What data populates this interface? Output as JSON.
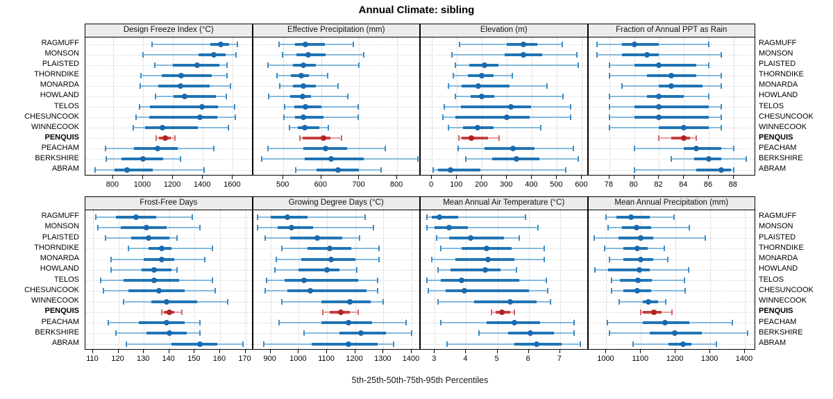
{
  "title": "Annual Climate: sibling",
  "xlabel": "5th-25th-50th-75th-95th Percentiles",
  "sites": [
    "RAGMUFF",
    "MONSON",
    "PLAISTED",
    "THORNDIKE",
    "MONARDA",
    "HOWLAND",
    "TELOS",
    "CHESUNCOOK",
    "WINNECOOK",
    "PENQUIS",
    "PEACHAM",
    "BERKSHIRE",
    "ABRAM"
  ],
  "highlight_site": "PENQUIS",
  "colors": {
    "blue_whisker": "#85b9dd",
    "blue_cap": "#3d8dc4",
    "blue_iqr": "#1f74b4",
    "blue_dot": "#1a6aad",
    "red_whisker": "#e49c9c",
    "red_cap": "#d16a6a",
    "red_iqr": "#c54040",
    "red_dot": "#b02423",
    "strip_bg": "#ececec",
    "grid": "#d9d9d9"
  },
  "chart_data": [
    {
      "type": "dotplot-percentiles",
      "panel_title": "Design Freeze Index (°C)",
      "xlim": [
        615,
        1735
      ],
      "ticks": [
        800,
        1000,
        1200,
        1400,
        1600
      ],
      "values": {
        "RAGMUFF": [
          1060,
          1450,
          1520,
          1575,
          1630
        ],
        "MONSON": [
          1000,
          1370,
          1475,
          1550,
          1620
        ],
        "PLAISTED": [
          1080,
          1200,
          1360,
          1510,
          1560
        ],
        "THORNDIKE": [
          985,
          1125,
          1255,
          1460,
          1560
        ],
        "MONARDA": [
          980,
          1100,
          1250,
          1445,
          1585
        ],
        "HOWLAND": [
          1085,
          1205,
          1280,
          1485,
          1555
        ],
        "TELOS": [
          975,
          1045,
          1395,
          1500,
          1610
        ],
        "CHESUNCOOK": [
          955,
          1040,
          1380,
          1495,
          1615
        ],
        "WINNECOOK": [
          935,
          1015,
          1130,
          1365,
          1570
        ],
        "PENQUIS": [
          1090,
          1105,
          1150,
          1185,
          1215
        ],
        "PEACHAM": [
          750,
          940,
          1095,
          1230,
          1475
        ],
        "BERKSHIRE": [
          755,
          855,
          1000,
          1135,
          1250
        ],
        "ABRAM": [
          680,
          810,
          895,
          1065,
          1410
        ]
      }
    },
    {
      "type": "dotplot-percentiles",
      "panel_title": "Effective Precipitation (mm)",
      "xlim": [
        420,
        862
      ],
      "ticks": [
        500,
        600,
        700,
        800
      ],
      "values": {
        "RAGMUFF": [
          488,
          530,
          558,
          610,
          685
        ],
        "MONSON": [
          497,
          535,
          565,
          612,
          712
        ],
        "PLAISTED": [
          460,
          525,
          553,
          585,
          700
        ],
        "THORNDIKE": [
          483,
          520,
          548,
          567,
          617
        ],
        "MONARDA": [
          490,
          525,
          552,
          585,
          645
        ],
        "HOWLAND": [
          462,
          518,
          550,
          573,
          670
        ],
        "TELOS": [
          503,
          528,
          558,
          600,
          698
        ],
        "CHESUNCOOK": [
          502,
          530,
          553,
          605,
          698
        ],
        "WINNECOOK": [
          517,
          538,
          557,
          595,
          618
        ],
        "PENQUIS": [
          543,
          550,
          605,
          625,
          653
        ],
        "PEACHAM": [
          460,
          553,
          612,
          668,
          768
        ],
        "BERKSHIRE": [
          443,
          557,
          625,
          712,
          855
        ],
        "ABRAM": [
          532,
          588,
          645,
          700,
          758
        ]
      }
    },
    {
      "type": "dotplot-percentiles",
      "panel_title": "Elevation (m)",
      "xlim": [
        -45,
        625
      ],
      "ticks": [
        0,
        100,
        200,
        300,
        400,
        500,
        600
      ],
      "values": {
        "RAGMUFF": [
          110,
          300,
          365,
          420,
          520
        ],
        "MONSON": [
          80,
          290,
          365,
          440,
          580
        ],
        "PLAISTED": [
          95,
          150,
          210,
          265,
          585
        ],
        "THORNDIKE": [
          85,
          145,
          198,
          245,
          320
        ],
        "MONARDA": [
          65,
          120,
          185,
          310,
          460
        ],
        "HOWLAND": [
          95,
          155,
          198,
          250,
          525
        ],
        "TELOS": [
          50,
          115,
          315,
          395,
          555
        ],
        "CHESUNCOOK": [
          45,
          95,
          300,
          390,
          555
        ],
        "WINNECOOK": [
          65,
          125,
          183,
          245,
          435
        ],
        "PENQUIS": [
          108,
          118,
          158,
          225,
          268
        ],
        "PEACHAM": [
          105,
          210,
          325,
          410,
          565
        ],
        "BERKSHIRE": [
          135,
          240,
          337,
          430,
          585
        ],
        "ABRAM": [
          5,
          25,
          75,
          195,
          535
        ]
      }
    },
    {
      "type": "dotplot-percentiles",
      "panel_title": "Fraction of Annual PPT as Rain",
      "xlim": [
        76.3,
        89.8
      ],
      "ticks": [
        78,
        80,
        82,
        84,
        86,
        88
      ],
      "values": {
        "RAGMUFF": [
          77,
          79,
          80,
          82,
          86
        ],
        "MONSON": [
          77,
          79,
          81,
          82,
          87
        ],
        "PLAISTED": [
          78,
          80,
          82,
          85,
          86
        ],
        "THORNDIKE": [
          78,
          81,
          83,
          85,
          87
        ],
        "MONARDA": [
          79,
          82,
          83,
          85.5,
          87
        ],
        "HOWLAND": [
          78,
          81,
          82,
          84,
          86
        ],
        "TELOS": [
          78,
          80,
          82,
          86,
          87
        ],
        "CHESUNCOOK": [
          78,
          80,
          82,
          86,
          87
        ],
        "WINNECOOK": [
          78,
          82,
          84,
          86,
          87
        ],
        "PENQUIS": [
          82,
          83,
          84,
          84.5,
          85
        ],
        "PEACHAM": [
          80,
          84,
          85,
          87,
          88
        ],
        "BERKSHIRE": [
          83,
          84.8,
          86,
          87,
          89
        ],
        "ABRAM": [
          80,
          85,
          87,
          87.8,
          88
        ]
      }
    },
    {
      "type": "dotplot-percentiles",
      "panel_title": "Frost-Free Days",
      "xlim": [
        107,
        173
      ],
      "ticks": [
        110,
        120,
        130,
        140,
        150,
        160,
        170
      ],
      "values": {
        "RAGMUFF": [
          111,
          119,
          127,
          135,
          149
        ],
        "MONSON": [
          112,
          121,
          131,
          139,
          152
        ],
        "PLAISTED": [
          115,
          125,
          132,
          140,
          143
        ],
        "THORNDIKE": [
          124,
          132,
          137,
          141,
          157
        ],
        "MONARDA": [
          117,
          130,
          137,
          142,
          154
        ],
        "HOWLAND": [
          117,
          129,
          134,
          141,
          143
        ],
        "TELOS": [
          113,
          122,
          134,
          144,
          157
        ],
        "CHESUNCOOK": [
          114,
          124,
          136,
          146,
          158
        ],
        "WINNECOOK": [
          122,
          133,
          139,
          151,
          163
        ],
        "PENQUIS": [
          137,
          138,
          140,
          142,
          145
        ],
        "PEACHAM": [
          116,
          128,
          139,
          146,
          152
        ],
        "BERKSHIRE": [
          119,
          131,
          140,
          147,
          152
        ],
        "ABRAM": [
          123,
          141,
          152,
          159,
          169
        ]
      }
    },
    {
      "type": "dotplot-percentiles",
      "panel_title": "Growing Degree Days (°C)",
      "xlim": [
        838,
        1432
      ],
      "ticks": [
        900,
        1000,
        1100,
        1200,
        1300,
        1400
      ],
      "values": {
        "RAGMUFF": [
          855,
          900,
          960,
          1030,
          1235
        ],
        "MONSON": [
          855,
          925,
          975,
          1050,
          1265
        ],
        "PLAISTED": [
          880,
          970,
          1065,
          1155,
          1215
        ],
        "THORNDIKE": [
          940,
          1030,
          1110,
          1185,
          1285
        ],
        "MONARDA": [
          920,
          1010,
          1115,
          1200,
          1285
        ],
        "HOWLAND": [
          915,
          1000,
          1100,
          1145,
          1205
        ],
        "TELOS": [
          885,
          950,
          1020,
          1210,
          1280
        ],
        "CHESUNCOOK": [
          880,
          960,
          1040,
          1240,
          1280
        ],
        "WINNECOOK": [
          940,
          1080,
          1180,
          1255,
          1300
        ],
        "PENQUIS": [
          1085,
          1110,
          1150,
          1180,
          1210
        ],
        "PEACHAM": [
          930,
          1080,
          1175,
          1260,
          1380
        ],
        "BERKSHIRE": [
          1020,
          1145,
          1220,
          1310,
          1400
        ],
        "ABRAM": [
          875,
          1045,
          1175,
          1280,
          1335
        ]
      }
    },
    {
      "type": "dotplot-percentiles",
      "panel_title": "Mean Annual Air Temperature (°C)",
      "xlim": [
        2.55,
        7.9
      ],
      "ticks": [
        3,
        4,
        5,
        6,
        7
      ],
      "values": {
        "RAGMUFF": [
          2.75,
          2.9,
          3.15,
          3.75,
          5.9
        ],
        "MONSON": [
          2.75,
          3.0,
          3.45,
          4.05,
          6.3
        ],
        "PLAISTED": [
          3.05,
          3.45,
          4.15,
          5.2,
          5.7
        ],
        "THORNDIKE": [
          3.2,
          3.85,
          4.65,
          5.45,
          6.5
        ],
        "MONARDA": [
          2.9,
          3.65,
          4.7,
          5.55,
          6.5
        ],
        "HOWLAND": [
          3.1,
          3.5,
          4.6,
          5.1,
          5.6
        ],
        "TELOS": [
          2.75,
          3.2,
          3.85,
          5.7,
          6.55
        ],
        "CHESUNCOOK": [
          2.8,
          3.35,
          3.95,
          6.0,
          6.6
        ],
        "WINNECOOK": [
          3.1,
          4.25,
          5.4,
          6.25,
          6.7
        ],
        "PENQUIS": [
          4.8,
          4.95,
          5.15,
          5.4,
          5.55
        ],
        "PEACHAM": [
          3.2,
          4.65,
          5.55,
          6.35,
          7.45
        ],
        "BERKSHIRE": [
          4.4,
          5.35,
          6.05,
          6.8,
          7.45
        ],
        "ABRAM": [
          3.4,
          5.55,
          6.25,
          7.05,
          7.65
        ]
      }
    },
    {
      "type": "dotplot-percentiles",
      "panel_title": "Mean Annual Precipitation (mm)",
      "xlim": [
        948,
        1432
      ],
      "ticks": [
        1000,
        1100,
        1200,
        1300,
        1400
      ],
      "values": {
        "RAGMUFF": [
          1000,
          1030,
          1072,
          1125,
          1195
        ],
        "MONSON": [
          1005,
          1045,
          1088,
          1130,
          1240
        ],
        "PLAISTED": [
          965,
          1035,
          1100,
          1135,
          1285
        ],
        "THORNDIKE": [
          995,
          1050,
          1090,
          1120,
          1168
        ],
        "MONARDA": [
          1010,
          1050,
          1100,
          1135,
          1178
        ],
        "HOWLAND": [
          967,
          1005,
          1095,
          1125,
          1238
        ],
        "TELOS": [
          1015,
          1040,
          1092,
          1132,
          1225
        ],
        "CHESUNCOOK": [
          1015,
          1050,
          1090,
          1130,
          1228
        ],
        "WINNECOOK": [
          1037,
          1105,
          1122,
          1150,
          1172
        ],
        "PENQUIS": [
          1100,
          1105,
          1137,
          1160,
          1190
        ],
        "PEACHAM": [
          1003,
          1105,
          1170,
          1240,
          1363
        ],
        "BERKSHIRE": [
          1010,
          1125,
          1198,
          1275,
          1408
        ],
        "ABRAM": [
          1078,
          1180,
          1222,
          1245,
          1318
        ]
      }
    }
  ]
}
